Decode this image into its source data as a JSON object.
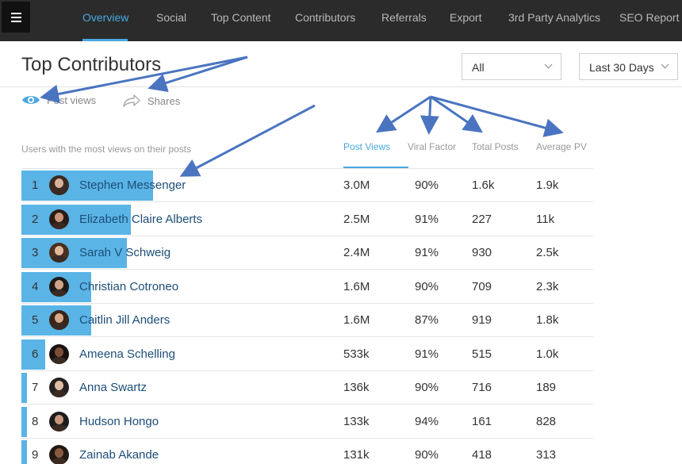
{
  "nav": {
    "items": [
      "Overview",
      "Social",
      "Top Content",
      "Contributors",
      "Referrals",
      "Export",
      "3rd Party Analytics",
      "SEO Report"
    ],
    "active": 0
  },
  "header": {
    "title": "Top Contributors",
    "filter_select": "All",
    "range_select": "Last 30 Days"
  },
  "toggles": {
    "post_views": "Post views",
    "shares": "Shares"
  },
  "table": {
    "subtitle": "Users with the most views on their posts",
    "columns": [
      "Post Views",
      "Viral Factor",
      "Total Posts",
      "Average PV"
    ],
    "active_column": 0,
    "rows": [
      {
        "rank": "1",
        "name": "Stephen Messenger",
        "post_views": "3.0M",
        "viral_factor": "90%",
        "total_posts": "1.6k",
        "average_pv": "1.9k",
        "bar": 1.0
      },
      {
        "rank": "2",
        "name": "Elizabeth Claire Alberts",
        "post_views": "2.5M",
        "viral_factor": "91%",
        "total_posts": "227",
        "average_pv": "11k",
        "bar": 0.83
      },
      {
        "rank": "3",
        "name": "Sarah V Schweig",
        "post_views": "2.4M",
        "viral_factor": "91%",
        "total_posts": "930",
        "average_pv": "2.5k",
        "bar": 0.8
      },
      {
        "rank": "4",
        "name": "Christian Cotroneo",
        "post_views": "1.6M",
        "viral_factor": "90%",
        "total_posts": "709",
        "average_pv": "2.3k",
        "bar": 0.53
      },
      {
        "rank": "5",
        "name": "Caitlin Jill Anders",
        "post_views": "1.6M",
        "viral_factor": "87%",
        "total_posts": "919",
        "average_pv": "1.8k",
        "bar": 0.53
      },
      {
        "rank": "6",
        "name": "Ameena Schelling",
        "post_views": "533k",
        "viral_factor": "91%",
        "total_posts": "515",
        "average_pv": "1.0k",
        "bar": 0.18
      },
      {
        "rank": "7",
        "name": "Anna Swartz",
        "post_views": "136k",
        "viral_factor": "90%",
        "total_posts": "716",
        "average_pv": "189",
        "bar": 0.045
      },
      {
        "rank": "8",
        "name": "Hudson Hongo",
        "post_views": "133k",
        "viral_factor": "94%",
        "total_posts": "161",
        "average_pv": "828",
        "bar": 0.044
      },
      {
        "rank": "9",
        "name": "Zainab Akande",
        "post_views": "131k",
        "viral_factor": "90%",
        "total_posts": "418",
        "average_pv": "313",
        "bar": 0.043
      }
    ]
  },
  "colors": {
    "accent": "#4aa8e0",
    "bar": "#5ab4e6",
    "annotation_arrow": "#4a74c0",
    "nav_bg": "#2b2b2b",
    "name_text": "#1d4e78"
  }
}
